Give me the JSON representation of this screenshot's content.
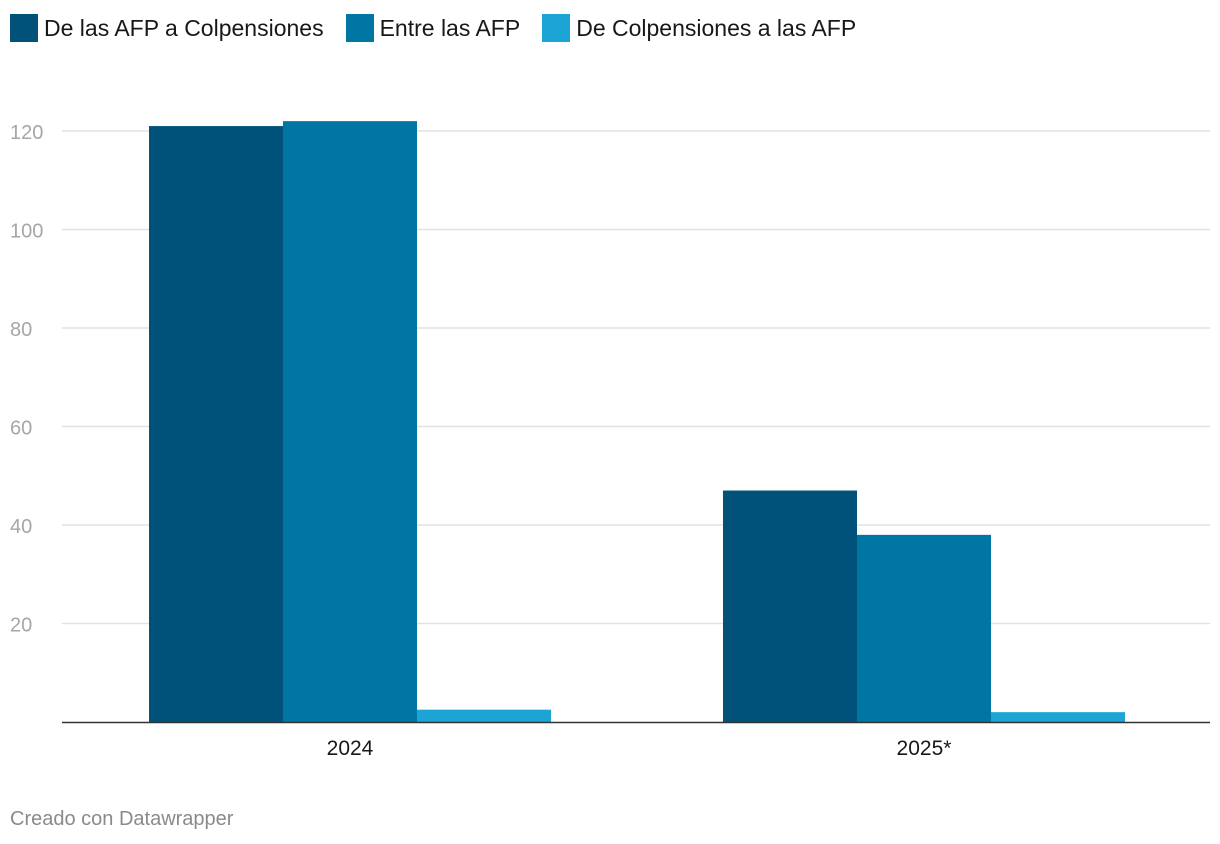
{
  "legend": [
    {
      "label": "De las AFP a Colpensiones",
      "color": "#00527a"
    },
    {
      "label": "Entre las AFP",
      "color": "#0077a3"
    },
    {
      "label": "De Colpensiones a las AFP",
      "color": "#1ca4d4"
    }
  ],
  "footer": {
    "credit": "Creado con Datawrapper"
  },
  "chart_data": {
    "type": "bar",
    "categories": [
      "2024",
      "2025*"
    ],
    "series": [
      {
        "name": "De las AFP a Colpensiones",
        "values": [
          121,
          47
        ],
        "color": "#00527a"
      },
      {
        "name": "Entre las AFP",
        "values": [
          122,
          38
        ],
        "color": "#0077a3"
      },
      {
        "name": "De Colpensiones a las AFP",
        "values": [
          2.5,
          2
        ],
        "color": "#1ca4d4"
      }
    ],
    "yticks": [
      20,
      40,
      60,
      80,
      100,
      120
    ],
    "ylim": [
      0,
      120
    ],
    "grid": true,
    "legend_position": "top-left"
  }
}
